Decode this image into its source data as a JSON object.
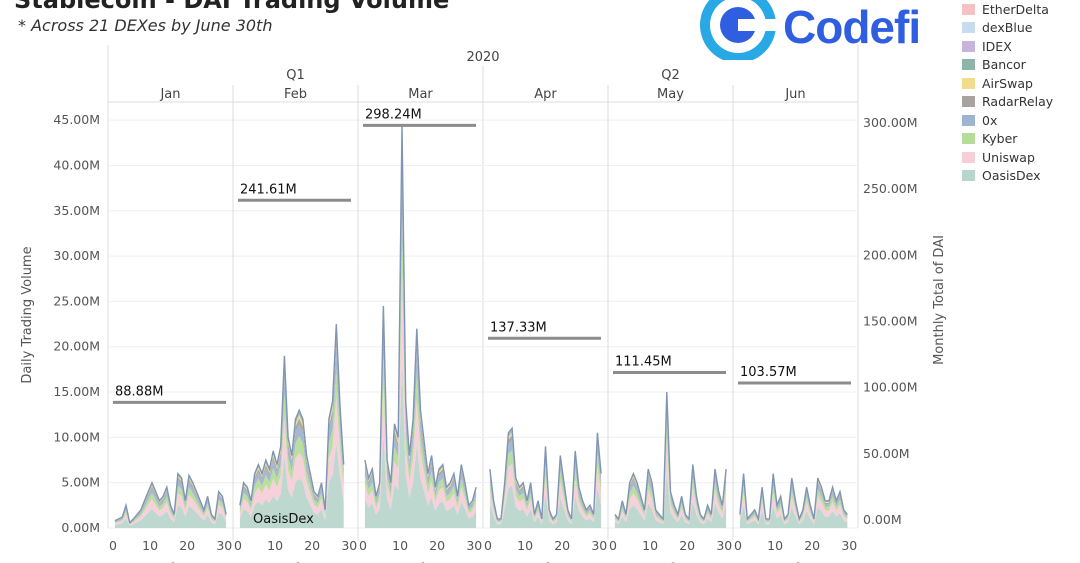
{
  "header": {
    "title": "Stablecoin - DAI Trading Volume",
    "subtitle": "* Across 21 DEXes by June 30th",
    "logo_text": "Codefi"
  },
  "legend": {
    "items": [
      {
        "label": "EtherDelta",
        "color": "#f4c2c2"
      },
      {
        "label": "dexBlue",
        "color": "#c9dcef"
      },
      {
        "label": "IDEX",
        "color": "#c7b3dc"
      },
      {
        "label": "Bancor",
        "color": "#8fb5a9"
      },
      {
        "label": "AirSwap",
        "color": "#f2dc8e"
      },
      {
        "label": "RadarRelay",
        "color": "#a8a39e"
      },
      {
        "label": "0x",
        "color": "#9fb4cf"
      },
      {
        "label": "Kyber",
        "color": "#b6dc9a"
      },
      {
        "label": "Uniswap",
        "color": "#f6cfd9"
      },
      {
        "label": "OasisDex",
        "color": "#b9d6cc"
      }
    ]
  },
  "chart_data": {
    "type": "area",
    "title": "Stablecoin - DAI Trading Volume",
    "year_label": "2020",
    "quarters": [
      {
        "label": "Q1",
        "months": [
          "Jan",
          "Feb",
          "Mar"
        ]
      },
      {
        "label": "Q2",
        "months": [
          "Apr",
          "May",
          "Jun"
        ]
      }
    ],
    "ylabel_left": "Daily Trading Volume",
    "ylabel_right": "Monthly Total of DAI",
    "xlabel": "Day of Date",
    "y_left_range": [
      0,
      47000000
    ],
    "y_left_ticks": [
      "0.00M",
      "5.00M",
      "10.00M",
      "15.00M",
      "20.00M",
      "25.00M",
      "30.00M",
      "35.00M",
      "40.00M",
      "45.00M"
    ],
    "y_right_ticks": [
      "0.00M",
      "50.00M",
      "100.00M",
      "150.00M",
      "200.00M",
      "250.00M",
      "300.00M"
    ],
    "x_ticks": [
      "0",
      "10",
      "20",
      "30"
    ],
    "annotated_series": "OasisDex",
    "monthly_totals": [
      {
        "month": "Jan",
        "label": "88.88M",
        "value": 88.88
      },
      {
        "month": "Feb",
        "label": "241.61M",
        "value": 241.61
      },
      {
        "month": "Mar",
        "label": "298.24M",
        "value": 298.24
      },
      {
        "month": "Apr",
        "label": "137.33M",
        "value": 137.33
      },
      {
        "month": "May",
        "label": "111.45M",
        "value": 111.45
      },
      {
        "month": "Jun",
        "label": "103.57M",
        "value": 103.57
      }
    ],
    "daily_totals_M": {
      "Jan": [
        0.8,
        1.0,
        1.2,
        2.5,
        0.6,
        1.0,
        1.5,
        2.0,
        3.0,
        4.0,
        5.0,
        4.0,
        3.0,
        3.5,
        4.5,
        2.5,
        1.5,
        6.0,
        5.5,
        3.0,
        5.8,
        5.0,
        4.0,
        3.0,
        2.0,
        3.5,
        1.5,
        1.0,
        4.0,
        3.5,
        1.5
      ],
      "Feb": [
        2.5,
        5.0,
        4.5,
        3.0,
        6.0,
        7.0,
        6.0,
        7.5,
        6.5,
        8.5,
        7.0,
        9.0,
        19.0,
        10.0,
        8.0,
        12.0,
        13.0,
        12.0,
        8.0,
        6.0,
        4.0,
        3.5,
        5.0,
        2.0,
        12.0,
        14.0,
        22.5,
        13.5,
        7.0
      ],
      "Mar": [
        7.5,
        5.5,
        6.5,
        3.5,
        5.0,
        24.5,
        7.5,
        5.0,
        11.5,
        10.0,
        44.5,
        14.0,
        8.0,
        12.0,
        22.0,
        13.0,
        9.5,
        6.0,
        8.0,
        4.5,
        6.5,
        7.0,
        4.5,
        5.0,
        6.0,
        3.5,
        7.0,
        5.0,
        2.5,
        3.0,
        4.5
      ],
      "Apr": [
        6.5,
        3.0,
        1.0,
        1.0,
        5.0,
        10.5,
        11.0,
        5.5,
        4.5,
        5.0,
        3.0,
        5.0,
        1.5,
        3.0,
        1.0,
        9.0,
        2.0,
        1.0,
        1.5,
        8.0,
        5.0,
        2.0,
        1.0,
        8.5,
        4.5,
        3.0,
        2.0,
        2.5,
        1.5,
        10.5,
        6.0
      ],
      "May": [
        1.5,
        1.0,
        3.0,
        1.5,
        5.0,
        6.0,
        5.0,
        3.5,
        2.0,
        6.5,
        5.0,
        2.0,
        1.5,
        1.0,
        15.0,
        4.0,
        2.5,
        1.5,
        3.5,
        1.5,
        1.0,
        7.0,
        3.5,
        1.5,
        1.0,
        2.5,
        1.5,
        6.5,
        4.0,
        2.5,
        6.5
      ],
      "Jun": [
        1.5,
        6.0,
        1.0,
        1.5,
        2.0,
        1.0,
        4.5,
        1.0,
        1.0,
        6.0,
        2.5,
        3.5,
        1.0,
        1.5,
        5.5,
        3.0,
        1.0,
        2.0,
        4.5,
        2.5,
        1.0,
        5.5,
        4.5,
        3.0,
        3.0,
        4.5,
        3.0,
        4.0,
        2.0,
        1.5
      ]
    }
  }
}
